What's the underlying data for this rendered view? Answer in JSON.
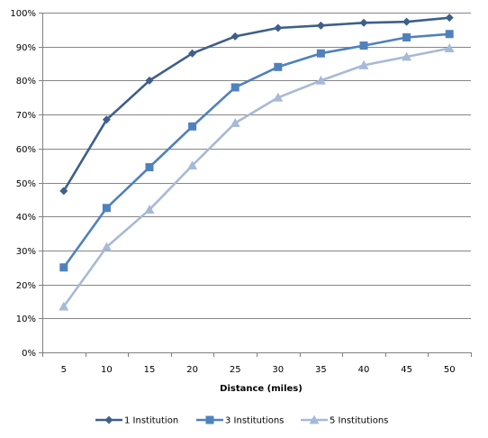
{
  "chart_data": {
    "type": "line",
    "xlabel": "Distance (miles)",
    "ylabel": "",
    "categories": [
      "5",
      "10",
      "15",
      "20",
      "25",
      "30",
      "35",
      "40",
      "45",
      "50"
    ],
    "ylim": [
      0,
      100
    ],
    "yticks": [
      "0%",
      "10%",
      "20%",
      "30%",
      "40%",
      "50%",
      "60%",
      "70%",
      "80%",
      "90%",
      "100%"
    ],
    "grid": "horizontal",
    "legend_position": "bottom",
    "series": [
      {
        "name": "1 Institution",
        "marker": "diamond",
        "color": "#3E5F8A",
        "values": [
          47.5,
          68.5,
          80,
          88,
          93,
          95.5,
          96.2,
          97,
          97.3,
          98.5
        ]
      },
      {
        "name": "3 Institutions",
        "marker": "square",
        "color": "#4F81BD",
        "values": [
          25,
          42.5,
          54.5,
          66.5,
          78,
          84,
          88,
          90.3,
          92.7,
          93.7
        ]
      },
      {
        "name": "5 Institutions",
        "marker": "triangle",
        "color": "#A7B9D7",
        "values": [
          13.5,
          31,
          42,
          55,
          67.5,
          75,
          80,
          84.5,
          87,
          89.5
        ]
      }
    ]
  }
}
